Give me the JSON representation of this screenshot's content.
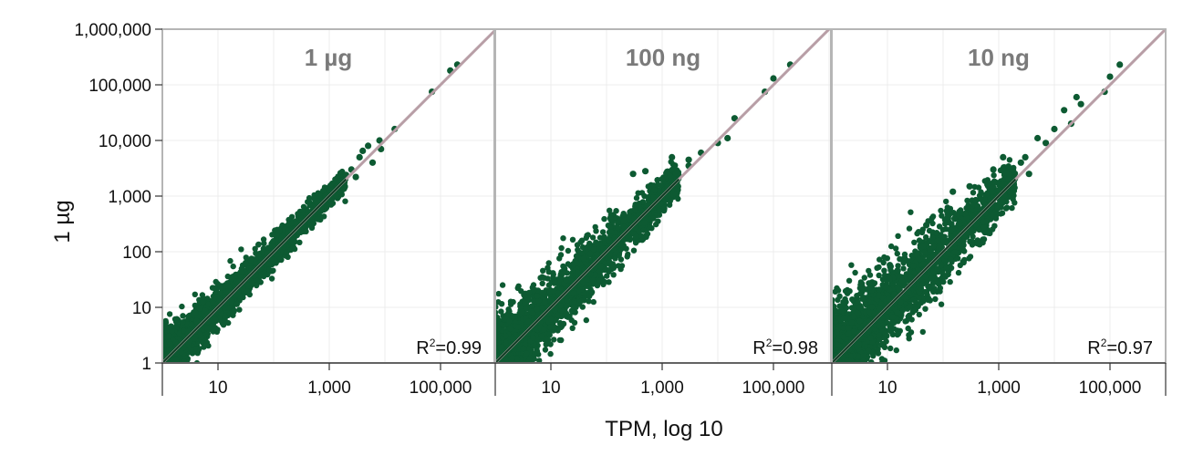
{
  "chart_data": {
    "type": "scatter",
    "scale": "log10",
    "grid": true,
    "colors": {
      "points": "#0d5a32",
      "identity_line": "#b89ea6",
      "fit_line": "#0a3a20",
      "grid": "#ececec",
      "frame": "#b5b5b5",
      "title": "#7a7a7a"
    },
    "ylabel": "1 µg",
    "xlabel": "TPM, log 10",
    "ylim": [
      1,
      1000000
    ],
    "xlim": [
      1,
      1000000
    ],
    "yticks": [
      1,
      10,
      100,
      1000,
      10000,
      100000,
      1000000
    ],
    "ytick_labels": [
      "1",
      "10",
      "100",
      "1,000",
      "10,000",
      "100,000",
      "1,000,000"
    ],
    "xticks": [
      10,
      1000,
      100000
    ],
    "xtick_labels": [
      "10",
      "1,000",
      "100,000"
    ],
    "panels": [
      {
        "title": "1 µg",
        "r2_prefix": "R",
        "r2_sup": "2",
        "r2_value": "=0.99",
        "spread": 0.15,
        "outliers": [
          [
            2500,
            3000
          ],
          [
            3500,
            5000
          ],
          [
            4000,
            6500
          ],
          [
            5000,
            8000
          ],
          [
            8000,
            10000
          ],
          [
            8500,
            7000
          ],
          [
            15000,
            16000
          ],
          [
            6000,
            4000
          ],
          [
            3000,
            2200
          ],
          [
            1500,
            1800
          ],
          [
            600,
            800
          ],
          [
            2000,
            2400
          ],
          [
            70000,
            75000
          ],
          [
            150000,
            180000
          ],
          [
            200000,
            230000
          ]
        ]
      },
      {
        "title": "100 ng",
        "r2_prefix": "R",
        "r2_sup": "2",
        "r2_value": "=0.98",
        "spread": 0.28,
        "outliers": [
          [
            300,
            2500
          ],
          [
            500,
            2800
          ],
          [
            1000,
            2000
          ],
          [
            1500,
            1800
          ],
          [
            3000,
            3500
          ],
          [
            5000,
            6000
          ],
          [
            1500,
            5000
          ],
          [
            3000,
            4500
          ],
          [
            20000,
            25000
          ],
          [
            15000,
            11000
          ],
          [
            10000,
            9000
          ],
          [
            100000,
            130000
          ],
          [
            70000,
            75000
          ],
          [
            200000,
            230000
          ]
        ]
      },
      {
        "title": "10 ng",
        "r2_prefix": "R",
        "r2_sup": "2",
        "r2_value": "=0.97",
        "spread": 0.36,
        "outliers": [
          [
            800,
            3000
          ],
          [
            1200,
            5000
          ],
          [
            1500,
            2000
          ],
          [
            2500,
            4000
          ],
          [
            3000,
            5000
          ],
          [
            3500,
            2500
          ],
          [
            1800,
            3000
          ],
          [
            7000,
            9000
          ],
          [
            5000,
            11000
          ],
          [
            20000,
            20000
          ],
          [
            30000,
            45000
          ],
          [
            10000,
            16000
          ],
          [
            15000,
            35000
          ],
          [
            25000,
            60000
          ],
          [
            80000,
            75000
          ],
          [
            100000,
            140000
          ],
          [
            150000,
            230000
          ],
          [
            50,
            300
          ],
          [
            150,
            1200
          ],
          [
            300,
            1500
          ]
        ]
      }
    ]
  }
}
